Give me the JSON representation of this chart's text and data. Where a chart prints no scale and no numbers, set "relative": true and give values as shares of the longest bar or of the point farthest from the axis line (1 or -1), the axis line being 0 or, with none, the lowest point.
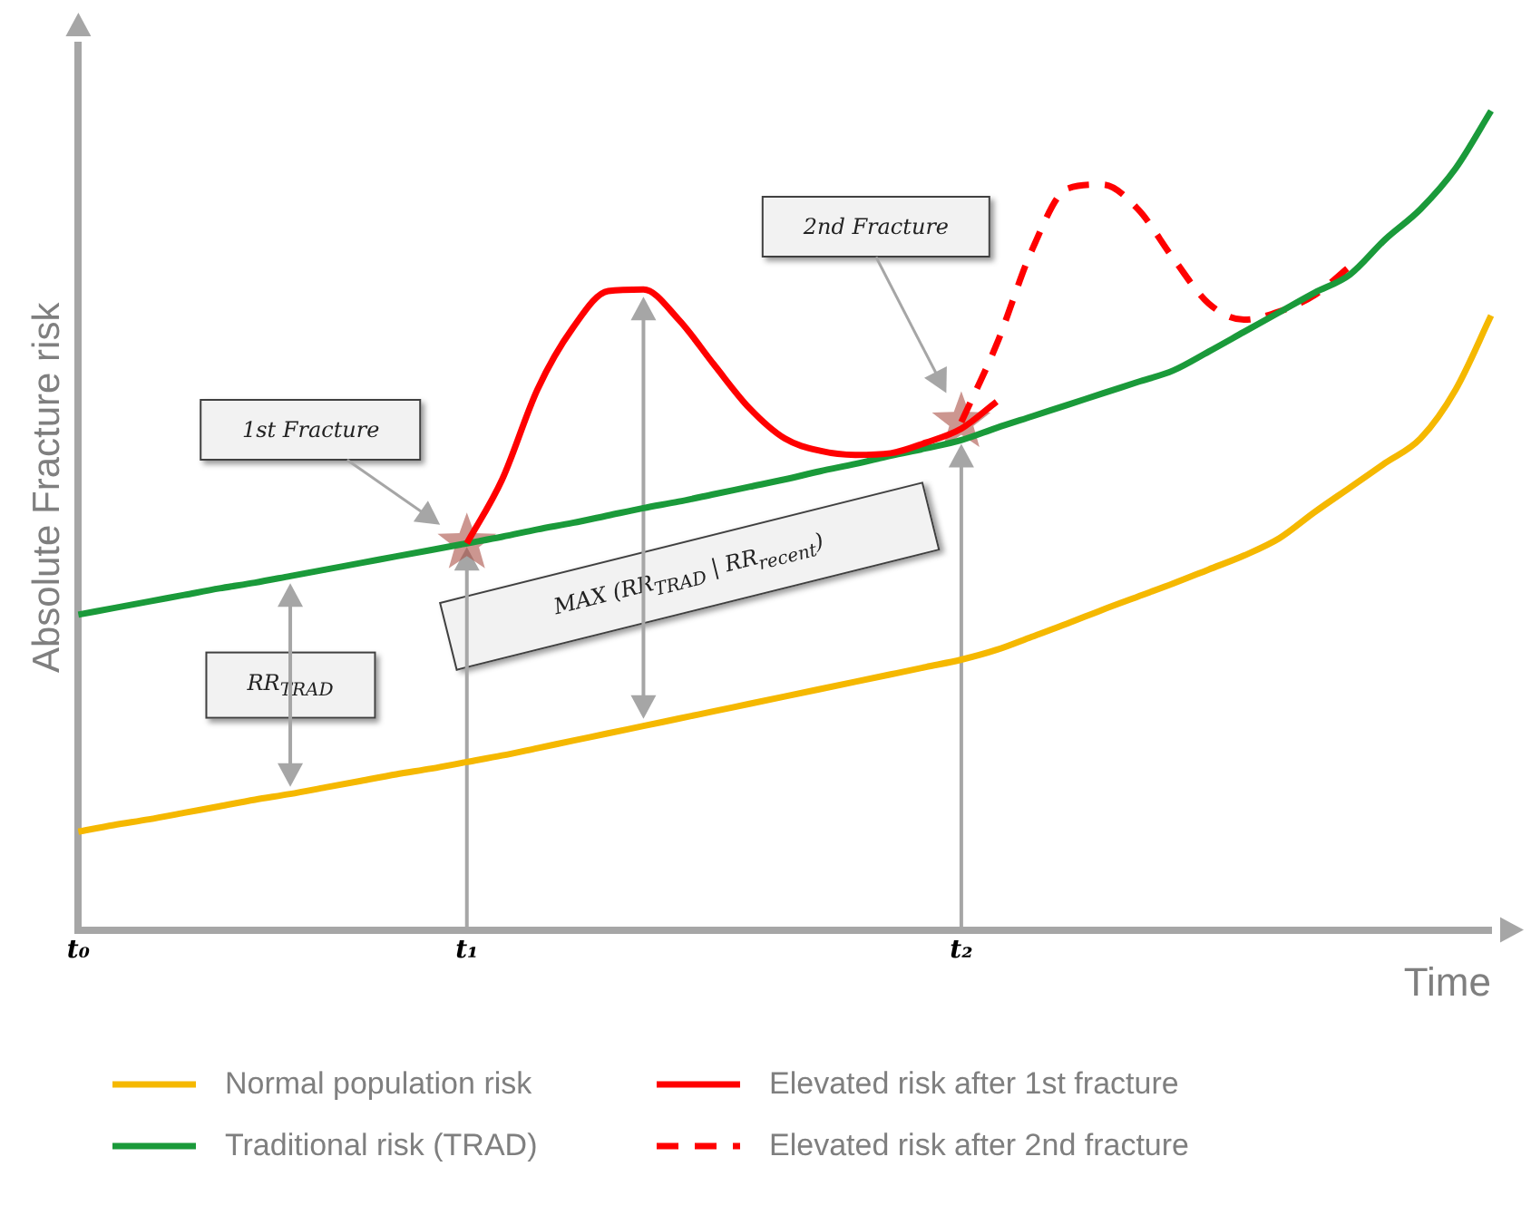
{
  "chart_data": {
    "type": "line",
    "relative": true,
    "xlabel": "Time",
    "ylabel": "Absolute Fracture risk",
    "categories": [
      "t₀",
      null,
      null,
      null,
      null,
      null,
      null,
      null,
      null,
      null,
      null,
      "t₁",
      null,
      null,
      null,
      null,
      null,
      null,
      null,
      null,
      null,
      null,
      null,
      null,
      null,
      "t₂",
      null,
      null,
      null,
      null,
      null,
      null,
      null,
      null,
      null,
      null,
      null,
      null,
      null,
      null,
      null
    ],
    "grid": false,
    "legend": "bottom",
    "marker": "none",
    "annotations": [
      "1st Fracture",
      "2nd Fracture",
      "RR$_{TRAD}$",
      "MAX (RR$_{TRAD}$ | RR$_{recent}$)"
    ],
    "series": [
      {
        "name": "Normal population risk",
        "color": "#f5b800",
        "line_style": "solid",
        "values": [
          0.12,
          0.128,
          0.135,
          0.143,
          0.151,
          0.159,
          0.166,
          0.174,
          0.182,
          0.19,
          0.197,
          0.205,
          0.213,
          0.222,
          0.231,
          0.24,
          0.249,
          0.258,
          0.267,
          0.276,
          0.285,
          0.294,
          0.303,
          0.312,
          0.321,
          0.33,
          0.342,
          0.358,
          0.374,
          0.391,
          0.407,
          0.423,
          0.44,
          0.457,
          0.478,
          0.51,
          0.54,
          0.57,
          0.6,
          0.66,
          0.75
        ]
      },
      {
        "name": "Elevated risk after 1st fracture",
        "color": "#ff0000",
        "line_style": "solid",
        "values": [
          null,
          null,
          null,
          null,
          null,
          null,
          null,
          null,
          null,
          null,
          null,
          0.472,
          0.55,
          0.66,
          0.735,
          0.78,
          0.782,
          0.745,
          0.69,
          0.637,
          0.6,
          0.585,
          0.58,
          0.582,
          0.595,
          0.612,
          0.645,
          null,
          null,
          null,
          null,
          null,
          null,
          null,
          null,
          null,
          null,
          null,
          null,
          null,
          null
        ]
      },
      {
        "name": "Traditional risk (TRAD)",
        "color": "#1a9a3a",
        "line_style": "solid",
        "values": [
          0.385,
          0.393,
          0.401,
          0.409,
          0.417,
          0.424,
          0.432,
          0.44,
          0.448,
          0.456,
          0.464,
          0.472,
          0.48,
          0.489,
          0.497,
          0.506,
          0.515,
          0.523,
          0.532,
          0.541,
          0.55,
          0.56,
          0.569,
          0.579,
          0.588,
          0.598,
          0.613,
          0.627,
          0.641,
          0.655,
          0.669,
          0.683,
          0.706,
          0.73,
          0.754,
          0.778,
          0.8,
          0.843,
          0.88,
          0.93,
          1.0
        ]
      },
      {
        "name": "Elevated risk after 2nd fracture",
        "color": "#ff0000",
        "line_style": "dashed",
        "values": [
          null,
          null,
          null,
          null,
          null,
          null,
          null,
          null,
          null,
          null,
          null,
          null,
          null,
          null,
          null,
          null,
          null,
          null,
          null,
          null,
          null,
          null,
          null,
          null,
          null,
          0.62,
          0.715,
          0.83,
          0.905,
          0.91,
          0.88,
          0.82,
          0.765,
          0.745,
          0.755,
          0.775,
          0.81,
          null,
          null,
          null,
          null
        ]
      }
    ]
  }
}
